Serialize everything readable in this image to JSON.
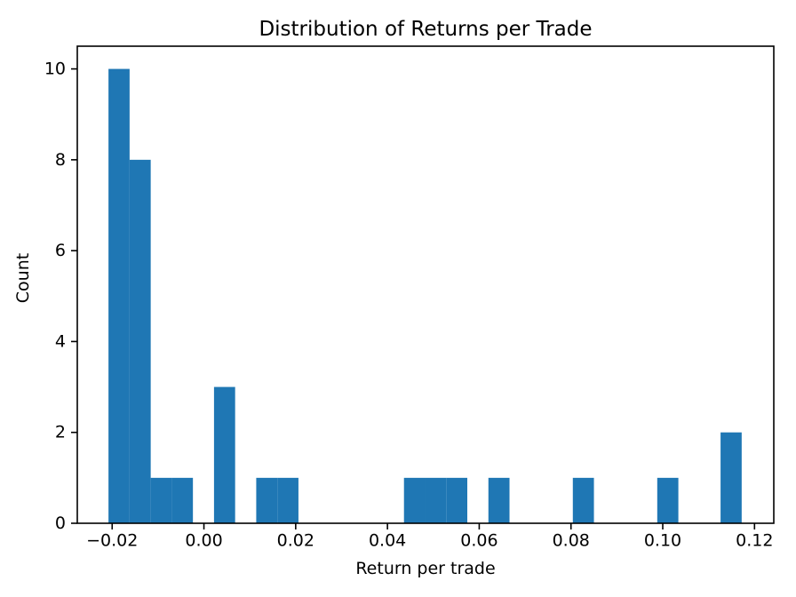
{
  "figure": {
    "background": "#ffffff"
  },
  "chart_data": {
    "type": "bar",
    "subtype": "histogram",
    "title": "Distribution of Returns per Trade",
    "xlabel": "Return per trade",
    "ylabel": "Count",
    "bar_color": "#1f77b4",
    "spine_color": "#000000",
    "grid": false,
    "legend": null,
    "bin_start": -0.0208,
    "bin_width": 0.0046,
    "counts": [
      10,
      8,
      1,
      1,
      0,
      3,
      0,
      1,
      1,
      0,
      0,
      0,
      0,
      0,
      1,
      1,
      1,
      0,
      1,
      0,
      0,
      0,
      1,
      0,
      0,
      0,
      1,
      0,
      0,
      2
    ],
    "xlim": [
      -0.0276,
      0.1242
    ],
    "ylim": [
      0,
      10.5
    ],
    "xticks": [
      -0.02,
      0.0,
      0.02,
      0.04,
      0.06,
      0.08,
      0.1,
      0.12
    ],
    "xtick_labels": [
      "−0.02",
      "0.00",
      "0.02",
      "0.04",
      "0.06",
      "0.08",
      "0.10",
      "0.12"
    ],
    "yticks": [
      0,
      2,
      4,
      6,
      8,
      10
    ],
    "ytick_labels": [
      "0",
      "2",
      "4",
      "6",
      "8",
      "10"
    ]
  }
}
